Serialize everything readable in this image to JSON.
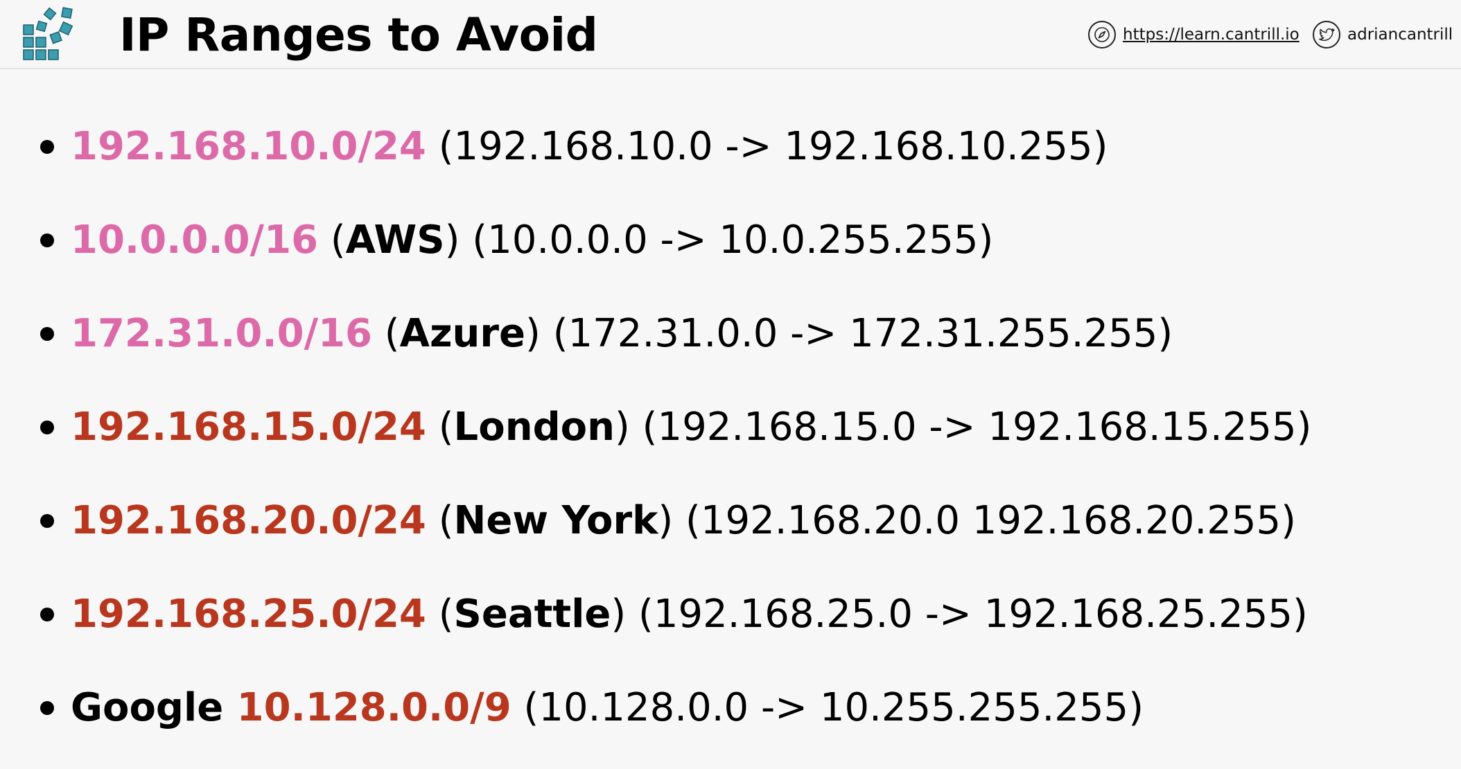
{
  "header": {
    "title": "IP Ranges to Avoid",
    "site_link": "https://learn.cantrill.io",
    "twitter_handle": "adriancantrill",
    "logo_icon": "cube-grid-logo-icon",
    "site_icon": "compass-icon",
    "twitter_icon": "twitter-bird-icon"
  },
  "colors": {
    "pink": "#dc6aa8",
    "red": "#b8371e"
  },
  "ranges": [
    {
      "cidr": "192.168.10.0/24",
      "cidr_color": "pink",
      "label": "",
      "range": "(192.168.10.0 -> 192.168.10.255)"
    },
    {
      "cidr": "10.0.0.0/16",
      "cidr_color": "pink",
      "label": "AWS",
      "range": "(10.0.0.0 -> 10.0.255.255)"
    },
    {
      "cidr": "172.31.0.0/16",
      "cidr_color": "pink",
      "label": "Azure",
      "range": "(172.31.0.0 -> 172.31.255.255)"
    },
    {
      "cidr": "192.168.15.0/24",
      "cidr_color": "red",
      "label": "London",
      "range": "(192.168.15.0 -> 192.168.15.255)"
    },
    {
      "cidr": "192.168.20.0/24",
      "cidr_color": "red",
      "label": "New York",
      "range": "(192.168.20.0 192.168.20.255)"
    },
    {
      "cidr": "192.168.25.0/24",
      "cidr_color": "red",
      "label": "Seattle",
      "range": "(192.168.25.0 -> 192.168.25.255)"
    }
  ],
  "google": {
    "prefix": "Google",
    "cidr": "10.128.0.0/9",
    "range": "(10.128.0.0 -> 10.255.255.255)"
  }
}
